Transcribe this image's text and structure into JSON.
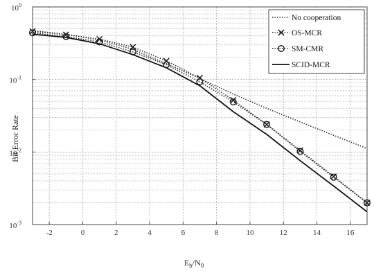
{
  "chart_data": {
    "type": "line",
    "xlabel": "E",
    "xlabel_sub1": "b",
    "xlabel_mid": "/N",
    "xlabel_sub2": "0",
    "ylabel": "Bit Error Rate",
    "xlim": [
      -3,
      17
    ],
    "ylim_log10": [
      -3,
      0
    ],
    "yscale": "log",
    "grid": true,
    "legend_position": "top-right",
    "x_ticks": [
      -2,
      0,
      2,
      4,
      6,
      8,
      10,
      12,
      14,
      16
    ],
    "x_tick_labels": [
      "-2",
      "0",
      "2",
      "4",
      "6",
      "8",
      "10",
      "12",
      "14",
      "16"
    ],
    "y_ticks": [
      {
        "value": 1,
        "base": "10",
        "exp": "0"
      },
      {
        "value": 0.1,
        "base": "10",
        "exp": "-1"
      },
      {
        "value": 0.01,
        "base": "10",
        "exp": "-2"
      },
      {
        "value": 0.001,
        "base": "10",
        "exp": "-3"
      }
    ],
    "series": [
      {
        "name": "No cooperation",
        "style": "dotted",
        "marker": "none",
        "x": [
          -3,
          -1,
          1,
          3,
          5,
          7,
          9,
          11,
          13,
          15,
          17
        ],
        "y": [
          0.47,
          0.42,
          0.35,
          0.26,
          0.165,
          0.103,
          0.063,
          0.04,
          0.026,
          0.017,
          0.0112
        ]
      },
      {
        "name": "OS-MCR",
        "style": "dotted",
        "marker": "x",
        "x": [
          -3,
          -1,
          1,
          3,
          5,
          7,
          9,
          11,
          13,
          15,
          17
        ],
        "y": [
          0.46,
          0.415,
          0.36,
          0.28,
          0.18,
          0.105,
          0.052,
          0.024,
          0.0105,
          0.0046,
          0.002
        ]
      },
      {
        "name": "SM-CMR",
        "style": "dotted",
        "marker": "circle",
        "x": [
          -3,
          -1,
          1,
          3,
          5,
          7,
          9,
          11,
          13,
          15,
          17
        ],
        "y": [
          0.44,
          0.39,
          0.33,
          0.24,
          0.16,
          0.093,
          0.049,
          0.024,
          0.0102,
          0.0045,
          0.002
        ]
      },
      {
        "name": "SCID-MCR",
        "style": "solid",
        "marker": "none",
        "x": [
          -3,
          -1,
          1,
          3,
          5,
          7,
          9,
          11,
          13,
          15,
          17
        ],
        "y": [
          0.42,
          0.38,
          0.31,
          0.22,
          0.145,
          0.082,
          0.036,
          0.0175,
          0.0076,
          0.0034,
          0.0015
        ]
      }
    ]
  }
}
